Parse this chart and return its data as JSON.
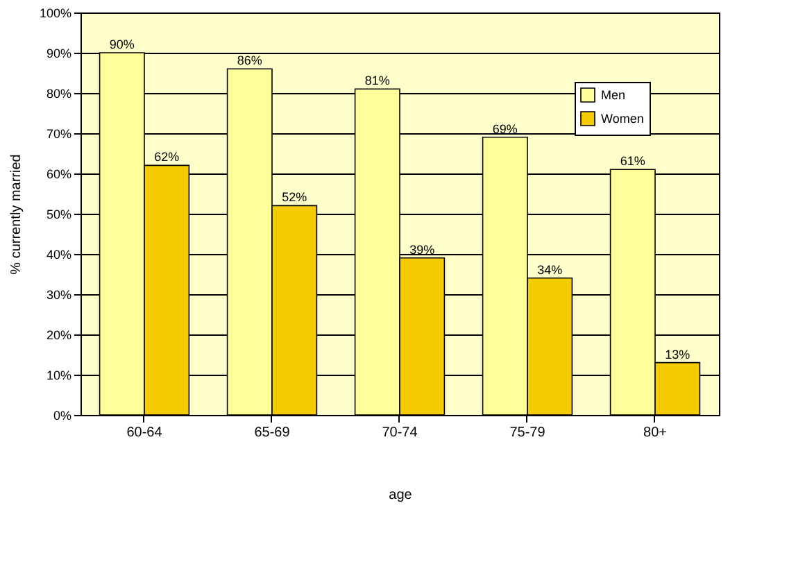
{
  "chart_data": {
    "type": "bar",
    "xlabel": "age",
    "ylabel": "% currently married",
    "categories": [
      "60-64",
      "65-69",
      "70-74",
      "75-79",
      "80+"
    ],
    "series": [
      {
        "name": "Men",
        "color": "#ffff99",
        "values": [
          90,
          86,
          81,
          69,
          61
        ],
        "value_labels": [
          "90%",
          "86%",
          "81%",
          "69%",
          "61%"
        ]
      },
      {
        "name": "Women",
        "color": "#f5cc00",
        "values": [
          62,
          52,
          39,
          34,
          13
        ],
        "value_labels": [
          "62%",
          "52%",
          "39%",
          "34%",
          "13%"
        ]
      }
    ],
    "ylim": [
      0,
      100
    ],
    "yticks": [
      {
        "value": 0,
        "label": "0%"
      },
      {
        "value": 10,
        "label": "10%"
      },
      {
        "value": 20,
        "label": "20%"
      },
      {
        "value": 30,
        "label": "30%"
      },
      {
        "value": 40,
        "label": "40%"
      },
      {
        "value": 50,
        "label": "50%"
      },
      {
        "value": 60,
        "label": "60%"
      },
      {
        "value": 70,
        "label": "70%"
      },
      {
        "value": 80,
        "label": "80%"
      },
      {
        "value": 90,
        "label": "90%"
      },
      {
        "value": 100,
        "label": "100%"
      }
    ],
    "grid": "y",
    "legend": "top right"
  }
}
